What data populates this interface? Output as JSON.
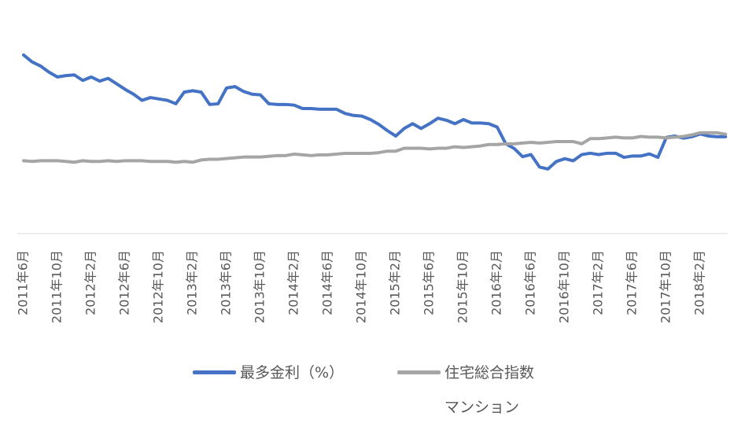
{
  "chart_data": {
    "type": "line",
    "categories": [
      "2011年6月",
      null,
      null,
      null,
      "2011年10月",
      null,
      null,
      null,
      "2012年2月",
      null,
      null,
      null,
      "2012年6月",
      null,
      null,
      null,
      "2012年10月",
      null,
      null,
      null,
      "2013年2月",
      null,
      null,
      null,
      "2013年6月",
      null,
      null,
      null,
      "2013年10月",
      null,
      null,
      null,
      "2014年2月",
      null,
      null,
      null,
      "2014年6月",
      null,
      null,
      null,
      "2014年10月",
      null,
      null,
      null,
      "2015年2月",
      null,
      null,
      null,
      "2015年6月",
      null,
      null,
      null,
      "2015年10月",
      null,
      null,
      null,
      "2016年2月",
      null,
      null,
      null,
      "2016年6月",
      null,
      null,
      null,
      "2016年10月",
      null,
      null,
      null,
      "2017年2月",
      null,
      null,
      null,
      "2017年6月",
      null,
      null,
      null,
      "2017年10月",
      null,
      null,
      null,
      "2018年2月",
      null,
      null,
      null
    ],
    "series": [
      {
        "name": "最多金利（%）",
        "color": "#4472c4",
        "values": [
          2.6,
          2.5,
          2.44,
          2.35,
          2.28,
          2.3,
          2.31,
          2.23,
          2.28,
          2.22,
          2.26,
          2.18,
          2.1,
          2.03,
          1.94,
          1.98,
          1.96,
          1.94,
          1.89,
          2.06,
          2.08,
          2.06,
          1.88,
          1.89,
          2.12,
          2.14,
          2.07,
          2.03,
          2.02,
          1.89,
          1.88,
          1.88,
          1.87,
          1.82,
          1.82,
          1.81,
          1.81,
          1.81,
          1.75,
          1.72,
          1.71,
          1.66,
          1.59,
          1.5,
          1.42,
          1.53,
          1.6,
          1.53,
          1.6,
          1.68,
          1.65,
          1.6,
          1.66,
          1.61,
          1.61,
          1.6,
          1.55,
          1.31,
          1.24,
          1.12,
          1.15,
          0.97,
          0.94,
          1.05,
          1.09,
          1.06,
          1.15,
          1.17,
          1.15,
          1.17,
          1.17,
          1.11,
          1.13,
          1.13,
          1.16,
          1.11,
          1.4,
          1.42,
          1.39,
          1.41,
          1.45,
          1.42,
          1.41,
          1.41
        ]
      },
      {
        "name": "住宅総合指数\nマンション",
        "color": "#a5a5a5",
        "axis": "y2",
        "values": [
          99,
          98,
          99,
          99,
          99,
          98,
          97,
          99,
          98,
          98,
          99,
          98,
          99,
          99,
          99,
          98,
          98,
          98,
          97,
          98,
          97,
          100,
          101,
          101,
          102,
          103,
          104,
          104,
          104,
          105,
          106,
          106,
          108,
          107,
          106,
          107,
          107,
          108,
          109,
          109,
          109,
          109,
          110,
          112,
          112,
          116,
          116,
          116,
          115,
          116,
          116,
          118,
          117,
          118,
          119,
          121,
          121,
          122,
          122,
          123,
          124,
          123,
          124,
          125,
          125,
          125,
          122,
          129,
          129,
          130,
          131,
          130,
          130,
          132,
          131,
          131,
          130,
          131,
          132,
          134,
          137,
          137,
          137,
          135
        ]
      }
    ],
    "ylim": [
      0,
      3
    ],
    "y2lim": [
      0,
      280
    ],
    "legend": "bottom"
  }
}
